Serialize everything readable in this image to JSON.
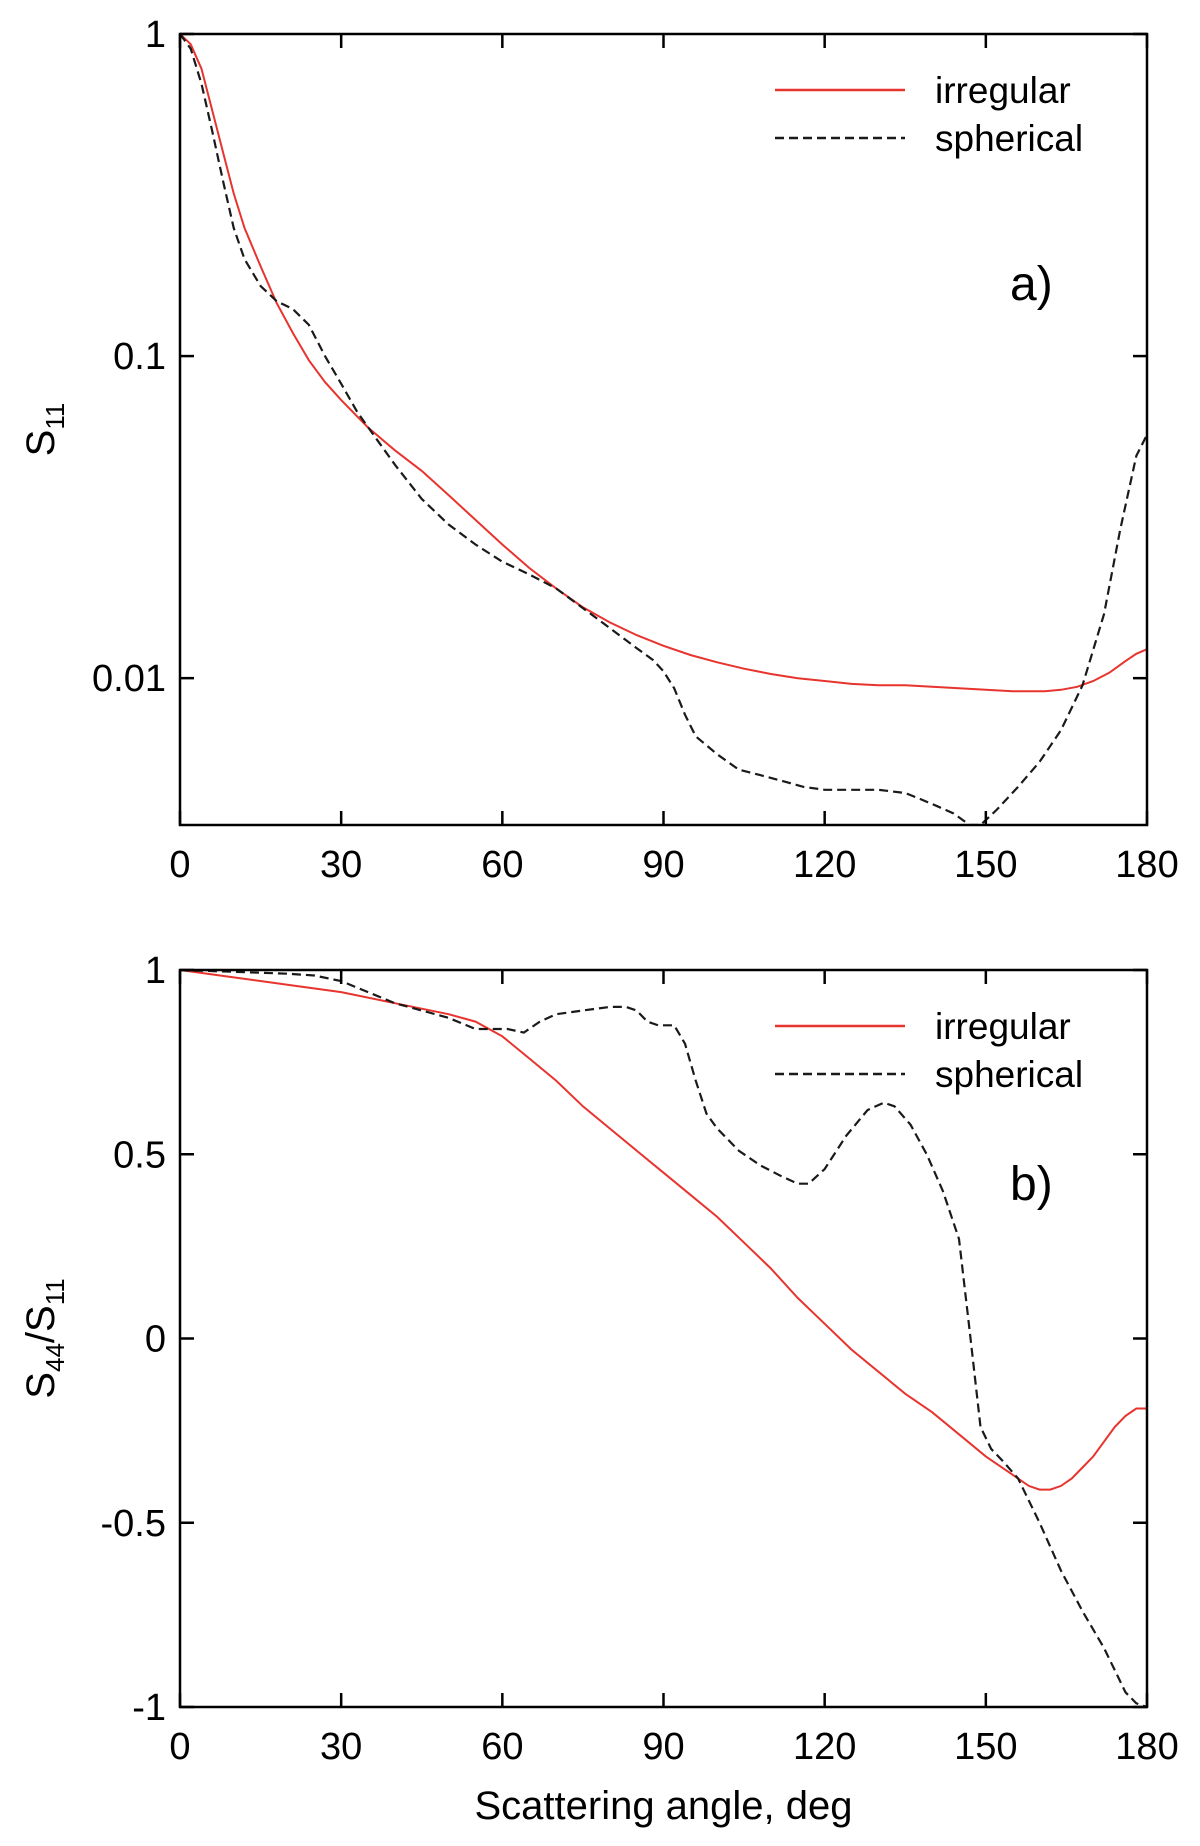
{
  "chart_data": [
    {
      "type": "line",
      "panel_label": "a)",
      "xlabel": "",
      "ylabel_main": "S",
      "ylabel_sub": "11",
      "ylabel_tail_main": "",
      "ylabel_tail_sub": "",
      "xlim": [
        0,
        180
      ],
      "ylim": [
        0.0035,
        1
      ],
      "yscale": "log",
      "grid": false,
      "legend_position": "top-right",
      "xticks": [
        0,
        30,
        60,
        90,
        120,
        150,
        180
      ],
      "xtick_labels": [
        "0",
        "30",
        "60",
        "90",
        "120",
        "150",
        "180"
      ],
      "yticks": [
        1,
        0.1,
        0.01
      ],
      "ytick_labels": [
        "1",
        "0.1",
        "0.01"
      ],
      "series": [
        {
          "name": "irregular",
          "color": "#e8342e",
          "dash": "solid",
          "x": [
            0,
            2,
            4,
            6,
            8,
            10,
            12,
            15,
            18,
            21,
            24,
            27,
            30,
            35,
            40,
            45,
            50,
            55,
            60,
            65,
            70,
            75,
            80,
            85,
            90,
            95,
            100,
            105,
            110,
            115,
            120,
            125,
            130,
            135,
            140,
            145,
            150,
            155,
            158,
            161,
            164,
            167,
            170,
            173,
            176,
            178,
            180
          ],
          "y": [
            1.0,
            0.93,
            0.78,
            0.58,
            0.43,
            0.32,
            0.25,
            0.19,
            0.146,
            0.118,
            0.097,
            0.083,
            0.073,
            0.06,
            0.051,
            0.044,
            0.037,
            0.031,
            0.026,
            0.022,
            0.019,
            0.0166,
            0.0149,
            0.0136,
            0.0126,
            0.0118,
            0.0112,
            0.0107,
            0.0103,
            0.01,
            0.0098,
            0.0096,
            0.0095,
            0.0095,
            0.0094,
            0.0093,
            0.0092,
            0.0091,
            0.0091,
            0.0091,
            0.0092,
            0.0094,
            0.0098,
            0.0104,
            0.0113,
            0.0119,
            0.0123
          ]
        },
        {
          "name": "spherical",
          "color": "#1a1a1a",
          "dash": "dashed",
          "x": [
            0,
            2,
            4,
            6,
            8,
            10,
            12,
            15,
            18,
            21,
            24,
            27,
            30,
            33,
            36,
            40,
            45,
            50,
            55,
            60,
            65,
            70,
            75,
            80,
            85,
            88,
            90,
            92,
            94,
            96,
            100,
            104,
            108,
            112,
            116,
            120,
            125,
            130,
            135,
            138,
            141,
            144,
            147,
            149,
            152,
            156,
            160,
            164,
            168,
            172,
            175,
            178,
            180
          ],
          "y": [
            1.0,
            0.9,
            0.7,
            0.5,
            0.35,
            0.25,
            0.2,
            0.165,
            0.148,
            0.14,
            0.125,
            0.1,
            0.082,
            0.067,
            0.057,
            0.046,
            0.036,
            0.03,
            0.026,
            0.023,
            0.021,
            0.019,
            0.0165,
            0.0143,
            0.0124,
            0.0114,
            0.0105,
            0.0093,
            0.0077,
            0.0066,
            0.0058,
            0.0052,
            0.005,
            0.0048,
            0.0046,
            0.0045,
            0.0045,
            0.0045,
            0.0044,
            0.0042,
            0.004,
            0.0038,
            0.0035,
            0.0035,
            0.0039,
            0.0046,
            0.0055,
            0.0069,
            0.0095,
            0.0158,
            0.0288,
            0.049,
            0.057
          ]
        }
      ]
    },
    {
      "type": "line",
      "panel_label": "b)",
      "xlabel": "Scattering angle, deg",
      "ylabel_main": "S",
      "ylabel_sub": "44",
      "ylabel_tail_main": "/S",
      "ylabel_tail_sub": "11",
      "xlim": [
        0,
        180
      ],
      "ylim": [
        -1,
        1
      ],
      "yscale": "linear",
      "grid": false,
      "legend_position": "top-right",
      "xticks": [
        0,
        30,
        60,
        90,
        120,
        150,
        180
      ],
      "xtick_labels": [
        "0",
        "30",
        "60",
        "90",
        "120",
        "150",
        "180"
      ],
      "yticks": [
        1,
        0.5,
        0,
        -0.5,
        -1
      ],
      "ytick_labels": [
        "1",
        "0.5",
        "0",
        "-0.5",
        "-1"
      ],
      "series": [
        {
          "name": "irregular",
          "color": "#e8342e",
          "dash": "solid",
          "x": [
            0,
            10,
            20,
            30,
            40,
            50,
            55,
            60,
            65,
            70,
            75,
            80,
            85,
            90,
            95,
            100,
            105,
            110,
            115,
            120,
            125,
            130,
            135,
            140,
            145,
            150,
            155,
            158,
            160,
            162,
            164,
            166,
            168,
            170,
            172,
            174,
            176,
            178,
            180
          ],
          "y": [
            1.0,
            0.98,
            0.96,
            0.94,
            0.91,
            0.88,
            0.86,
            0.82,
            0.76,
            0.7,
            0.63,
            0.57,
            0.51,
            0.45,
            0.39,
            0.33,
            0.26,
            0.19,
            0.11,
            0.04,
            -0.03,
            -0.09,
            -0.15,
            -0.2,
            -0.26,
            -0.32,
            -0.37,
            -0.4,
            -0.41,
            -0.41,
            -0.4,
            -0.38,
            -0.35,
            -0.32,
            -0.28,
            -0.24,
            -0.21,
            -0.19,
            -0.19
          ]
        },
        {
          "name": "spherical",
          "color": "#1a1a1a",
          "dash": "dashed",
          "x": [
            0,
            10,
            20,
            25,
            30,
            35,
            40,
            45,
            50,
            55,
            58,
            61,
            64,
            67,
            70,
            75,
            80,
            83,
            85,
            87,
            89,
            92,
            94,
            96,
            98,
            100,
            104,
            108,
            112,
            115,
            117,
            120,
            124,
            128,
            131,
            133,
            136,
            139,
            142,
            145,
            147,
            149,
            151,
            153,
            156,
            160,
            164,
            168,
            172,
            176,
            178,
            180
          ],
          "y": [
            1.0,
            0.995,
            0.99,
            0.985,
            0.97,
            0.94,
            0.91,
            0.89,
            0.87,
            0.84,
            0.84,
            0.84,
            0.83,
            0.86,
            0.88,
            0.89,
            0.9,
            0.9,
            0.89,
            0.86,
            0.85,
            0.85,
            0.8,
            0.7,
            0.61,
            0.57,
            0.51,
            0.47,
            0.44,
            0.42,
            0.42,
            0.46,
            0.55,
            0.62,
            0.64,
            0.63,
            0.58,
            0.5,
            0.4,
            0.27,
            0.02,
            -0.24,
            -0.3,
            -0.33,
            -0.38,
            -0.5,
            -0.63,
            -0.74,
            -0.84,
            -0.96,
            -0.99,
            -1.0
          ]
        }
      ]
    }
  ]
}
